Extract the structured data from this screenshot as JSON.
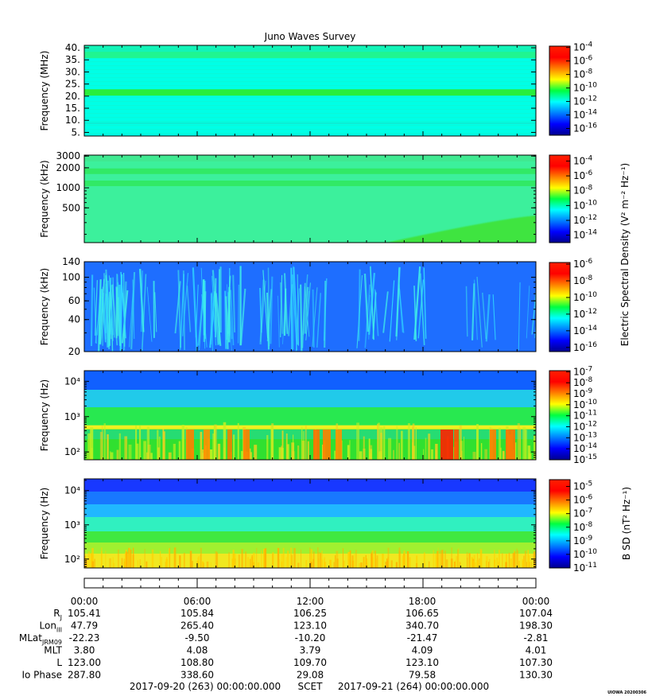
{
  "title": "Juno Waves Survey",
  "watermark": "UIOWA 20200306",
  "chart_data": [
    {
      "type": "heatmap",
      "ylabel": "Frequency (MHz)",
      "y_scale": "linear",
      "ylim": [
        3.5,
        41
      ],
      "yticks": [
        5,
        10,
        15,
        20,
        25,
        30,
        35,
        40
      ],
      "ytick_labels": [
        "5.",
        "10.",
        "15.",
        "20.",
        "25.",
        "30.",
        "35.",
        "40."
      ],
      "colorbar": {
        "ticks": [
          -4,
          -6,
          -8,
          -10,
          -12,
          -14,
          -16
        ],
        "range": [
          -17,
          -3.8
        ]
      },
      "features": {
        "background": "#00ffe6",
        "bands": [
          {
            "y": 21.5,
            "color": "#28ee3c"
          },
          {
            "y": 37,
            "color": "#20f590"
          }
        ]
      }
    },
    {
      "type": "heatmap",
      "ylabel": "Frequency (kHz)",
      "y_scale": "log",
      "ylim": [
        150,
        3100
      ],
      "yticks": [
        500,
        1000,
        2000,
        3000
      ],
      "ytick_labels": [
        "500",
        "1000",
        "2000",
        "3000"
      ],
      "colorbar": {
        "ticks": [
          -4,
          -6,
          -8,
          -10,
          -12,
          -14
        ],
        "range": [
          -15,
          -3.2
        ]
      },
      "features": {
        "background": "#3cf09c",
        "bands": [
          {
            "y": 1750,
            "color": "#30e860"
          },
          {
            "y": 1150,
            "color": "#30e860"
          }
        ]
      }
    },
    {
      "type": "heatmap",
      "ylabel": "Frequency (kHz)",
      "y_scale": "log",
      "ylim": [
        20,
        140
      ],
      "yticks": [
        20,
        40,
        60,
        100,
        140
      ],
      "ytick_labels": [
        "20",
        "40",
        "60",
        "100",
        "140"
      ],
      "colorbar": {
        "label": "Electric Spectral Density (V² m⁻² Hz⁻¹)",
        "ticks": [
          -6,
          -8,
          -10,
          -12,
          -14,
          -16
        ],
        "range": [
          -16.5,
          -5.8
        ]
      },
      "features": {
        "background": "#1e6eff"
      }
    },
    {
      "type": "heatmap",
      "ylabel": "Frequency (Hz)",
      "y_scale": "log",
      "ylim": [
        60,
        20000
      ],
      "yticks": [
        100,
        1000,
        10000
      ],
      "ytick_labels": [
        "10²",
        "10³",
        "10⁴"
      ],
      "colorbar": {
        "ticks": [
          -7,
          -8,
          -9,
          -10,
          -11,
          -12,
          -13,
          -14,
          -15
        ],
        "range": [
          -15,
          -6.9
        ]
      },
      "features": {
        "background": "#30e030",
        "line_hz": 500
      }
    },
    {
      "type": "heatmap",
      "ylabel": "Frequency (Hz)",
      "y_scale": "log",
      "ylim": [
        55,
        22000
      ],
      "yticks": [
        100,
        1000,
        10000
      ],
      "ytick_labels": [
        "10²",
        "10³",
        "10⁴"
      ],
      "colorbar": {
        "label": "B SD (nT² Hz⁻¹)",
        "ticks": [
          -5,
          -6,
          -7,
          -8,
          -9,
          -10,
          -11
        ],
        "range": [
          -11,
          -4.5
        ]
      },
      "features": {
        "background": "#40e840"
      }
    }
  ],
  "x_axis": {
    "ticks": [
      "00:00",
      "06:00",
      "12:00",
      "18:00",
      "00:00"
    ],
    "rows": [
      {
        "label": "R",
        "sub": "J",
        "values": [
          "105.41",
          "105.84",
          "106.25",
          "106.65",
          "107.04"
        ]
      },
      {
        "label": "Lon",
        "sub": "III",
        "values": [
          "47.79",
          "265.40",
          "123.10",
          "340.70",
          "198.30"
        ]
      },
      {
        "label": "MLat",
        "sub": "JRM09",
        "values": [
          "-22.23",
          "-9.50",
          "-10.20",
          "-21.47",
          "-2.81"
        ]
      },
      {
        "label": "MLT",
        "sub": "",
        "values": [
          "3.80",
          "4.08",
          "3.79",
          "4.09",
          "4.01"
        ]
      },
      {
        "label": "L",
        "sub": "",
        "values": [
          "123.00",
          "108.80",
          "109.70",
          "123.10",
          "107.30"
        ]
      },
      {
        "label": "Io Phase",
        "sub": "",
        "values": [
          "287.80",
          "338.60",
          "29.08",
          "79.58",
          "130.30"
        ]
      }
    ],
    "date_start": "2017-09-20 (263) 00:00:00.000",
    "scet": "SCET",
    "date_end": "2017-09-21 (264) 00:00:00.000"
  }
}
